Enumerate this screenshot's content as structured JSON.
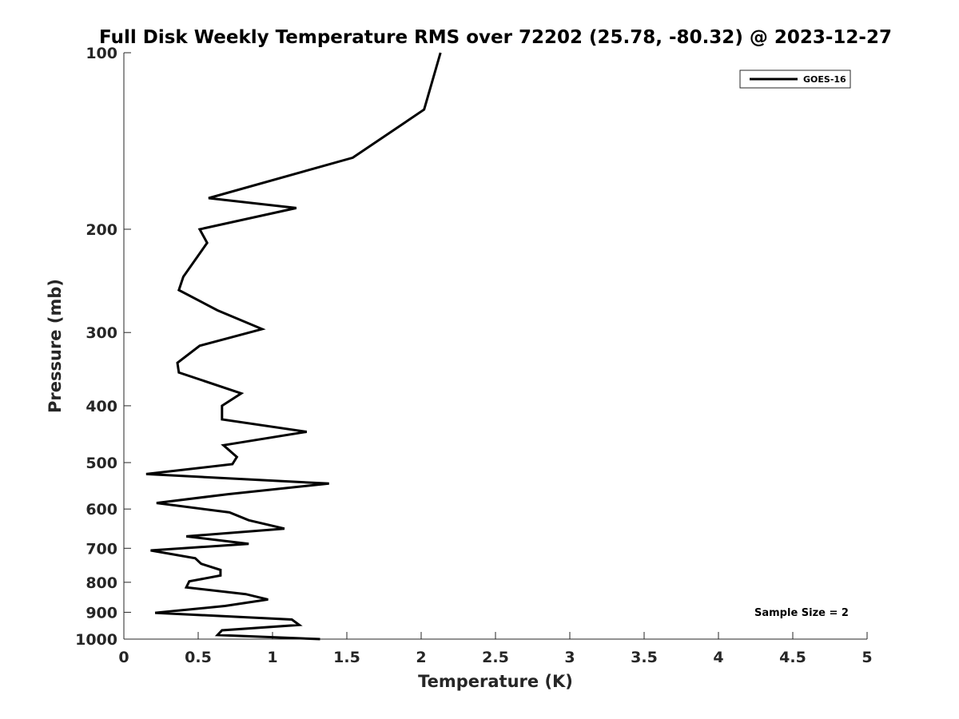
{
  "chart_data": {
    "type": "line",
    "title": "Full Disk Weekly Temperature RMS over 72202 (25.78, -80.32) @ 2023-12-27",
    "xlabel": "Temperature (K)",
    "ylabel": "Pressure (mb)",
    "xlim": [
      0,
      5
    ],
    "ylim": [
      1000,
      100
    ],
    "y_scale": "log",
    "y_reversed": true,
    "grid": false,
    "legend_position": "top-right",
    "x_ticks": [
      "0",
      "0.5",
      "1",
      "1.5",
      "2",
      "2.5",
      "3",
      "3.5",
      "4",
      "4.5",
      "5"
    ],
    "y_ticks": [
      "100",
      "200",
      "300",
      "400",
      "500",
      "600",
      "700",
      "800",
      "900",
      "1000"
    ],
    "series": [
      {
        "name": "GOES-16",
        "color": "#000000",
        "x": [
          2.13,
          2.02,
          1.54,
          0.57,
          1.16,
          0.51,
          0.56,
          0.4,
          0.37,
          0.63,
          0.93,
          0.51,
          0.36,
          0.37,
          0.79,
          0.66,
          0.66,
          1.23,
          0.67,
          0.76,
          0.73,
          0.15,
          1.38,
          0.7,
          0.22,
          0.71,
          0.84,
          1.08,
          0.42,
          0.84,
          0.18,
          0.48,
          0.52,
          0.65,
          0.65,
          0.44,
          0.42,
          0.82,
          0.97,
          0.68,
          0.21,
          1.13,
          1.18,
          0.66,
          0.63,
          1.32
        ],
        "y": [
          100,
          125,
          151,
          177,
          184,
          200,
          211,
          241,
          254,
          275,
          296,
          316,
          338,
          351,
          381,
          400,
          422,
          443,
          467,
          489,
          503,
          523,
          543,
          566,
          586,
          608,
          627,
          648,
          668,
          688,
          706,
          728,
          744,
          762,
          779,
          797,
          816,
          838,
          856,
          878,
          902,
          926,
          946,
          966,
          984,
          1000
        ]
      }
    ],
    "annotation": "Sample Size = 2"
  }
}
